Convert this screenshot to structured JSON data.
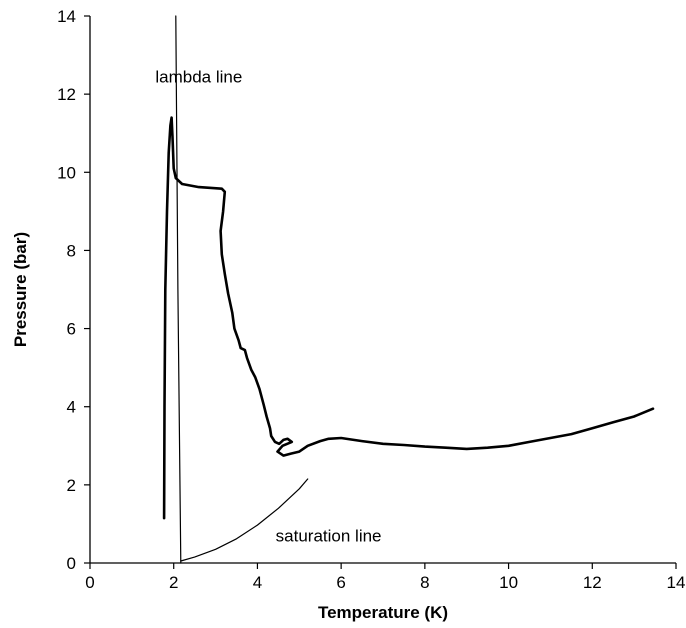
{
  "chart_data": {
    "type": "line",
    "xlabel": "Temperature (K)",
    "ylabel": "Pressure (bar)",
    "xlim": [
      0,
      14
    ],
    "ylim": [
      0,
      14
    ],
    "xticks": [
      "0",
      "2",
      "4",
      "6",
      "8",
      "10",
      "12",
      "14"
    ],
    "yticks": [
      "0",
      "2",
      "4",
      "6",
      "8",
      "10",
      "12",
      "14"
    ],
    "grid": false,
    "legend": "none",
    "annotations": [
      {
        "text": "lambda line",
        "x": 2.6,
        "y": 12.3
      },
      {
        "text": "saturation line",
        "x": 5.7,
        "y": 0.55
      }
    ],
    "series": [
      {
        "x": [
          1.77,
          1.78,
          1.8,
          1.84,
          1.88,
          1.92,
          1.95,
          1.97,
          2.0,
          2.05,
          2.2,
          2.6,
          3.15,
          3.22,
          3.18,
          3.12,
          3.15,
          3.22,
          3.3,
          3.4,
          3.45,
          3.55,
          3.6,
          3.7,
          3.75,
          3.85,
          3.95,
          4.05,
          4.15,
          4.22,
          4.3,
          4.33,
          4.42,
          4.52,
          4.62,
          4.72,
          4.82,
          4.6,
          4.48,
          4.62,
          4.8,
          5.0,
          5.2,
          5.5,
          5.7,
          6.0,
          6.5,
          7.0,
          7.5,
          8.0,
          8.5,
          9.0,
          9.5,
          10.0,
          10.5,
          11.0,
          11.5,
          12.0,
          12.5,
          13.0,
          13.45
        ],
        "y": [
          1.15,
          4.0,
          7.0,
          9.0,
          10.5,
          11.2,
          11.4,
          10.9,
          10.1,
          9.85,
          9.7,
          9.62,
          9.58,
          9.5,
          9.0,
          8.5,
          7.9,
          7.4,
          6.9,
          6.4,
          6.0,
          5.7,
          5.5,
          5.45,
          5.25,
          4.95,
          4.75,
          4.45,
          4.05,
          3.75,
          3.45,
          3.25,
          3.1,
          3.05,
          3.15,
          3.18,
          3.1,
          3.0,
          2.85,
          2.75,
          2.8,
          2.85,
          3.0,
          3.12,
          3.18,
          3.2,
          3.12,
          3.05,
          3.02,
          2.98,
          2.95,
          2.92,
          2.95,
          3.0,
          3.1,
          3.2,
          3.3,
          3.45,
          3.6,
          3.75,
          3.95
        ]
      },
      {
        "x": [
          2.05,
          2.1,
          2.17
        ],
        "y": [
          14.0,
          7.0,
          0.0
        ]
      },
      {
        "x": [
          2.17,
          2.5,
          3.0,
          3.5,
          4.0,
          4.5,
          5.0,
          5.2
        ],
        "y": [
          0.05,
          0.15,
          0.35,
          0.62,
          0.97,
          1.4,
          1.9,
          2.15
        ]
      }
    ]
  }
}
